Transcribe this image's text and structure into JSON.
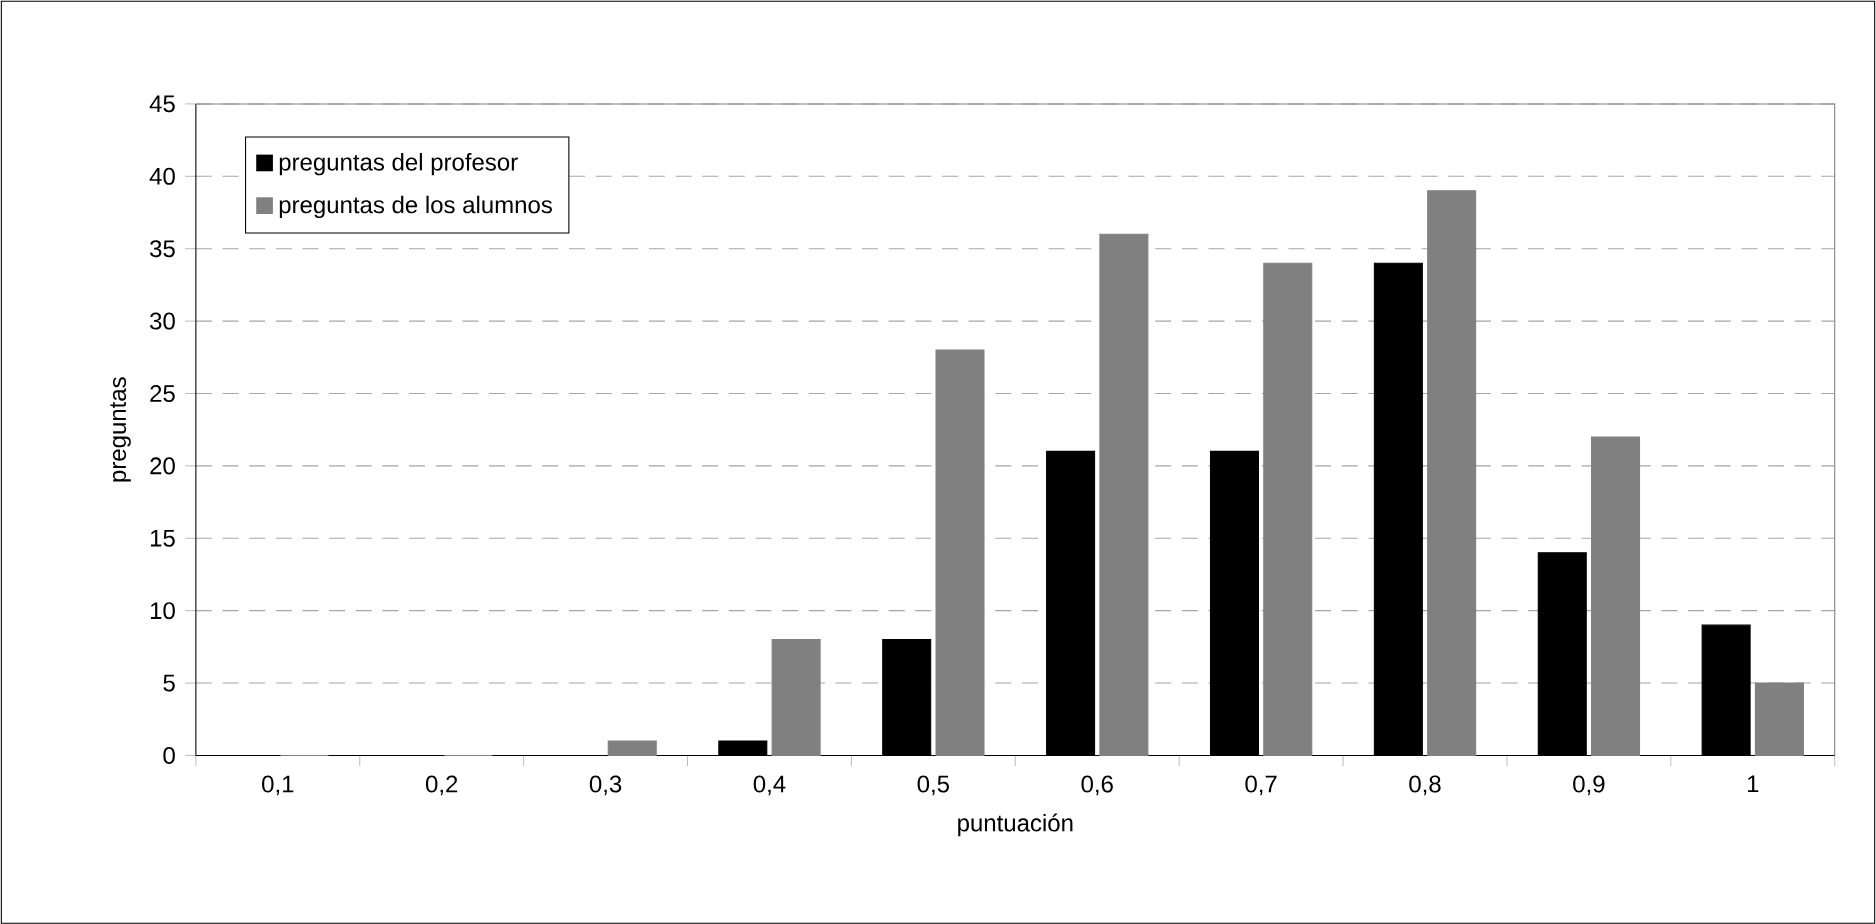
{
  "chart_data": {
    "type": "bar",
    "xlabel": "puntuación",
    "ylabel": "preguntas",
    "categories": [
      "0,1",
      "0,2",
      "0,3",
      "0,4",
      "0,5",
      "0,6",
      "0,7",
      "0,8",
      "0,9",
      "1"
    ],
    "series": [
      {
        "name": "preguntas del profesor",
        "color": "#000000",
        "values": [
          0,
          0,
          0,
          1,
          8,
          21,
          21,
          34,
          14,
          9
        ]
      },
      {
        "name": "preguntas de los alumnos",
        "color": "#808080",
        "values": [
          0,
          0,
          1,
          8,
          28,
          36,
          34,
          39,
          22,
          5
        ]
      }
    ],
    "ylim": [
      0,
      45
    ],
    "yticks": [
      0,
      5,
      10,
      15,
      20,
      25,
      30,
      35,
      40,
      45
    ],
    "grid": "y",
    "legend": "top left"
  }
}
